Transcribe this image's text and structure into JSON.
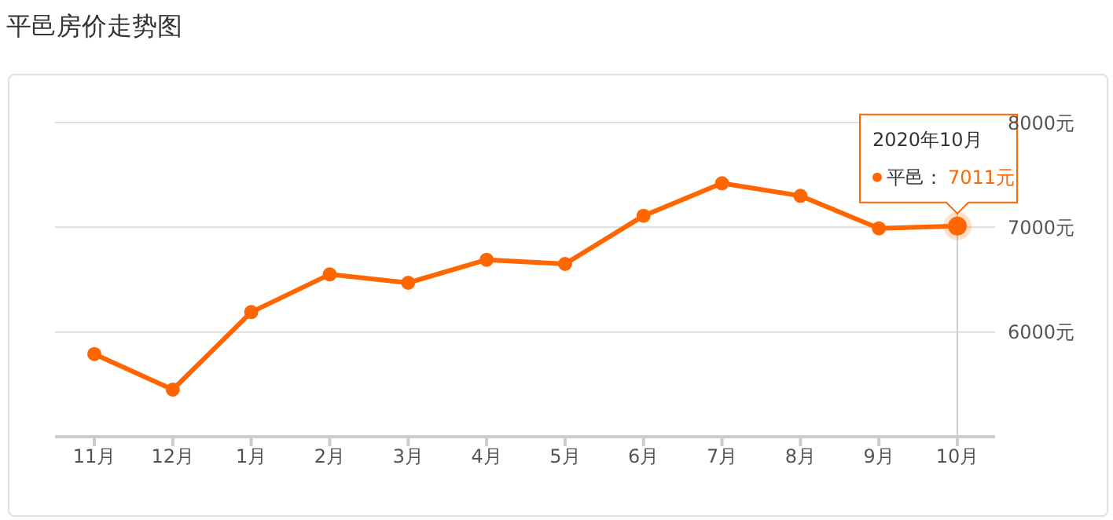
{
  "chart_data": {
    "type": "line",
    "title": "平邑房价走势图",
    "categories": [
      "11月",
      "12月",
      "1月",
      "2月",
      "3月",
      "4月",
      "5月",
      "6月",
      "7月",
      "8月",
      "9月",
      "10月"
    ],
    "series": [
      {
        "name": "平邑：",
        "color": "#ff6600",
        "values": [
          5790,
          5450,
          6190,
          6550,
          6470,
          6690,
          6650,
          7110,
          7420,
          7300,
          6990,
          7011
        ]
      }
    ],
    "ylim": [
      5000,
      8000
    ],
    "yticks": [
      {
        "value": 6000,
        "label": "6000元"
      },
      {
        "value": 7000,
        "label": "7000元"
      },
      {
        "value": 8000,
        "label": "8000元"
      }
    ],
    "grid": "y",
    "marker": "circle",
    "ref_lines": [
      {
        "axis": "x",
        "value": "10月",
        "color": "#cccccc"
      }
    ],
    "annotations": [
      "2020年10月",
      "7011元"
    ]
  }
}
